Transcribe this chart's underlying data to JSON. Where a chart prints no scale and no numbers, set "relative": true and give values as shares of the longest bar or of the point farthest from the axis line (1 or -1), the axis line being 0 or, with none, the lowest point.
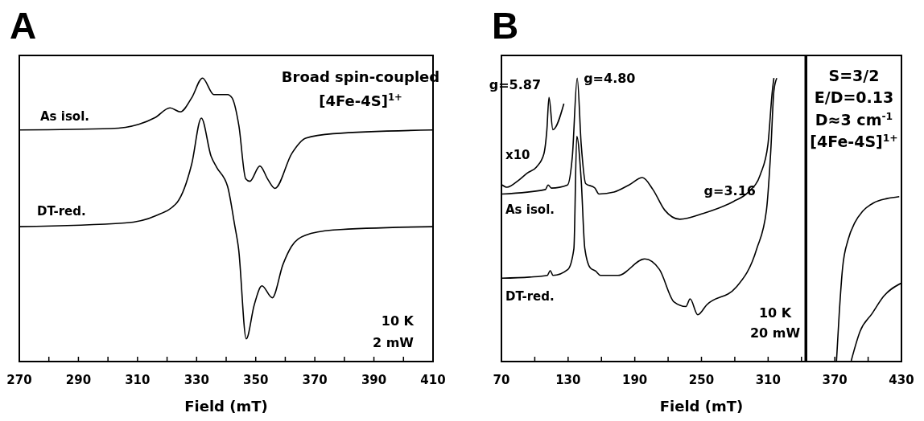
{
  "chart_data": [
    {
      "type": "line",
      "title": "A",
      "xlabel": "Field (mT)",
      "relative": true,
      "tick_labels": "x",
      "xlim": [
        270,
        410
      ],
      "xticks": [
        270,
        {
          "value": 280,
          "label": null
        },
        290,
        {
          "value": 300,
          "label": null
        },
        310,
        {
          "value": 320,
          "label": null
        },
        330,
        {
          "value": 340,
          "label": null
        },
        350,
        {
          "value": 360,
          "label": null
        },
        370,
        {
          "value": 380,
          "label": null
        },
        390,
        {
          "value": 400,
          "label": null
        },
        410
      ],
      "annotations": [
        "Broad spin-coupled",
        "[4Fe-4S]$^{1+}$",
        "10 K",
        "2 mW"
      ],
      "series": [
        {
          "name": "As isol.",
          "color": "#000000",
          "x": [
            270,
            301,
            310.4,
            316,
            321,
            324.5,
            328.3,
            332,
            335.8,
            340.5,
            342,
            344.3,
            346.6,
            348,
            351.4,
            354.2,
            356.5,
            362.2,
            366.9,
            376.2,
            410
          ],
          "values": [
            0.817,
            0.822,
            0.837,
            0.861,
            0.895,
            0.881,
            0.93,
            1.0,
            0.942,
            0.942,
            0.93,
            0.832,
            0.645,
            0.636,
            0.69,
            0.641,
            0.611,
            0.734,
            0.788,
            0.804,
            0.817
          ]
        },
        {
          "name": "DT-red.",
          "color": "#000000",
          "x": [
            270,
            305.7,
            316,
            323.5,
            328.3,
            331.6,
            334.9,
            336.8,
            340.5,
            342.9,
            344.2,
            346.8,
            349.5,
            352.1,
            355.6,
            359.2,
            362.1,
            366.7,
            376.2,
            410
          ],
          "values": [
            0.476,
            0.489,
            0.514,
            0.563,
            0.695,
            0.859,
            0.724,
            0.685,
            0.617,
            0.48,
            0.398,
            0.08,
            0.2,
            0.267,
            0.225,
            0.342,
            0.406,
            0.445,
            0.464,
            0.476
          ]
        }
      ]
    },
    {
      "type": "line",
      "title": "B",
      "xlabel": "Field (mT)",
      "relative": true,
      "tick_labels": "x",
      "xlim": [
        70,
        430
      ],
      "xticks": [
        70,
        {
          "value": 100,
          "label": null
        },
        130,
        {
          "value": 160,
          "label": null
        },
        190,
        {
          "value": 220,
          "label": null
        },
        250,
        {
          "value": 280,
          "label": null
        },
        310,
        {
          "value": 340,
          "label": null
        },
        370,
        {
          "value": 400,
          "label": null
        },
        430
      ],
      "ref_lines": [
        {
          "axis": "x",
          "value": 344,
          "color": "#000000"
        }
      ],
      "annotations": [
        {
          "text": "g=5.87",
          "x": 112.8,
          "y": 0.932
        },
        {
          "text": "g=4.80",
          "x": 138.2,
          "y": 1.0
        },
        {
          "text": "g=3.16",
          "x": 230.5,
          "y": 0.502
        },
        "S=3/2",
        "E/D=0.13",
        "D≈3 cm$^{-1}$",
        "[4Fe-4S]$^{1+}$",
        "10 K",
        "20 mW"
      ],
      "series": [
        {
          "name": "x10",
          "color": "#000000",
          "x": [
            70.6,
            75,
            85.3,
            93.3,
            101.5,
            108.2,
            110.9,
            112.8,
            116.3,
            126.2
          ],
          "values": [
            0.623,
            0.615,
            0.639,
            0.665,
            0.686,
            0.733,
            0.818,
            0.932,
            0.818,
            0.91
          ]
        },
        {
          "name": "As isol.",
          "color": "#000000",
          "x": [
            70.6,
            109.6,
            112,
            115,
            129.5,
            133.8,
            138.2,
            141.8,
            145.8,
            153.9,
            157.8,
            171.4,
            184.8,
            196.9,
            206.3,
            217,
            230.5,
            252,
            278.9,
            292,
            303,
            309.8,
            313.8,
            315.2
          ],
          "values": [
            0.591,
            0.607,
            0.623,
            0.612,
            0.623,
            0.723,
            1.0,
            0.765,
            0.628,
            0.613,
            0.591,
            0.598,
            0.623,
            0.649,
            0.607,
            0.534,
            0.502,
            0.523,
            0.565,
            0.597,
            0.66,
            0.765,
            0.955,
            1.0
          ]
        },
        {
          "name": "DT-red.",
          "color": "#000000",
          "x": [
            70,
            95.4,
            111.3,
            113.9,
            116.4,
            129.8,
            135.2,
            137.8,
            141.8,
            145,
            150,
            154.8,
            159,
            175,
            198.9,
            212.2,
            225.4,
            236,
            239.8,
            246.7,
            254.7,
            281.2,
            299.8,
            308.5,
            312.4,
            315.2,
            317.8
          ],
          "values": [
            0.294,
            0.298,
            0.304,
            0.321,
            0.304,
            0.325,
            0.398,
            0.794,
            0.639,
            0.4,
            0.33,
            0.319,
            0.304,
            0.304,
            0.362,
            0.325,
            0.21,
            0.194,
            0.221,
            0.165,
            0.2,
            0.262,
            0.398,
            0.534,
            0.744,
            0.955,
            1.0
          ]
        },
        {
          "color": "#000000",
          "x": [
            371.5,
            374,
            377,
            382,
            388,
            395,
            405,
            417,
            428
          ],
          "values": [
            0.0,
            0.17,
            0.33,
            0.43,
            0.49,
            0.53,
            0.56,
            0.575,
            0.582
          ]
        },
        {
          "color": "#000000",
          "x": [
            384.8,
            392.8,
            403.5,
            414.1,
            430
          ],
          "values": [
            0.003,
            0.107,
            0.169,
            0.231,
            0.277
          ]
        }
      ]
    }
  ]
}
